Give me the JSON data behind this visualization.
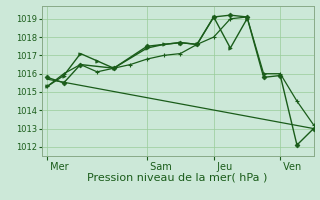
{
  "xlabel": "Pression niveau de la mer( hPa )",
  "bg_color": "#cce8d8",
  "line_color": "#1a5c1a",
  "grid_color": "#99cc99",
  "ylim": [
    1011.5,
    1019.7
  ],
  "yticks": [
    1012,
    1013,
    1014,
    1015,
    1016,
    1017,
    1018,
    1019
  ],
  "xtick_labels": [
    " Mer",
    " Sam",
    " Jeu",
    " Ven"
  ],
  "xtick_positions": [
    0,
    36,
    60,
    84
  ],
  "xlim": [
    -2,
    96
  ],
  "series": [
    {
      "x": [
        0,
        6,
        12,
        24,
        36,
        48,
        54,
        60,
        66,
        72,
        78,
        84,
        90,
        96
      ],
      "y": [
        1015.8,
        1015.5,
        1016.5,
        1016.3,
        1017.5,
        1017.7,
        1017.6,
        1019.1,
        1019.2,
        1019.1,
        1015.8,
        1015.9,
        1012.1,
        1013.0
      ],
      "marker": "D",
      "ms": 2.5,
      "lw": 1.0
    },
    {
      "x": [
        0,
        6,
        12,
        18,
        24,
        36,
        42,
        48,
        54,
        60,
        66,
        72
      ],
      "y": [
        1015.3,
        1015.9,
        1017.1,
        1016.7,
        1016.3,
        1017.4,
        1017.6,
        1017.7,
        1017.6,
        1019.1,
        1017.4,
        1019.0
      ],
      "marker": ">",
      "ms": 2.5,
      "lw": 1.0
    },
    {
      "x": [
        0,
        6,
        12,
        18,
        24,
        30,
        36,
        42,
        48,
        54,
        60,
        66,
        72,
        78,
        84,
        90,
        96
      ],
      "y": [
        1015.3,
        1016.0,
        1016.5,
        1016.1,
        1016.3,
        1016.5,
        1016.8,
        1017.0,
        1017.1,
        1017.6,
        1018.0,
        1019.0,
        1019.1,
        1016.0,
        1016.0,
        1014.5,
        1013.2
      ],
      "marker": "+",
      "ms": 3.5,
      "lw": 0.9
    },
    {
      "x": [
        0,
        96
      ],
      "y": [
        1015.7,
        1013.0
      ],
      "marker": null,
      "ms": 0,
      "lw": 0.9,
      "linestyle": "-"
    }
  ],
  "figsize": [
    3.2,
    2.0
  ],
  "dpi": 100,
  "ytick_fontsize": 6,
  "xtick_fontsize": 7,
  "xlabel_fontsize": 8
}
